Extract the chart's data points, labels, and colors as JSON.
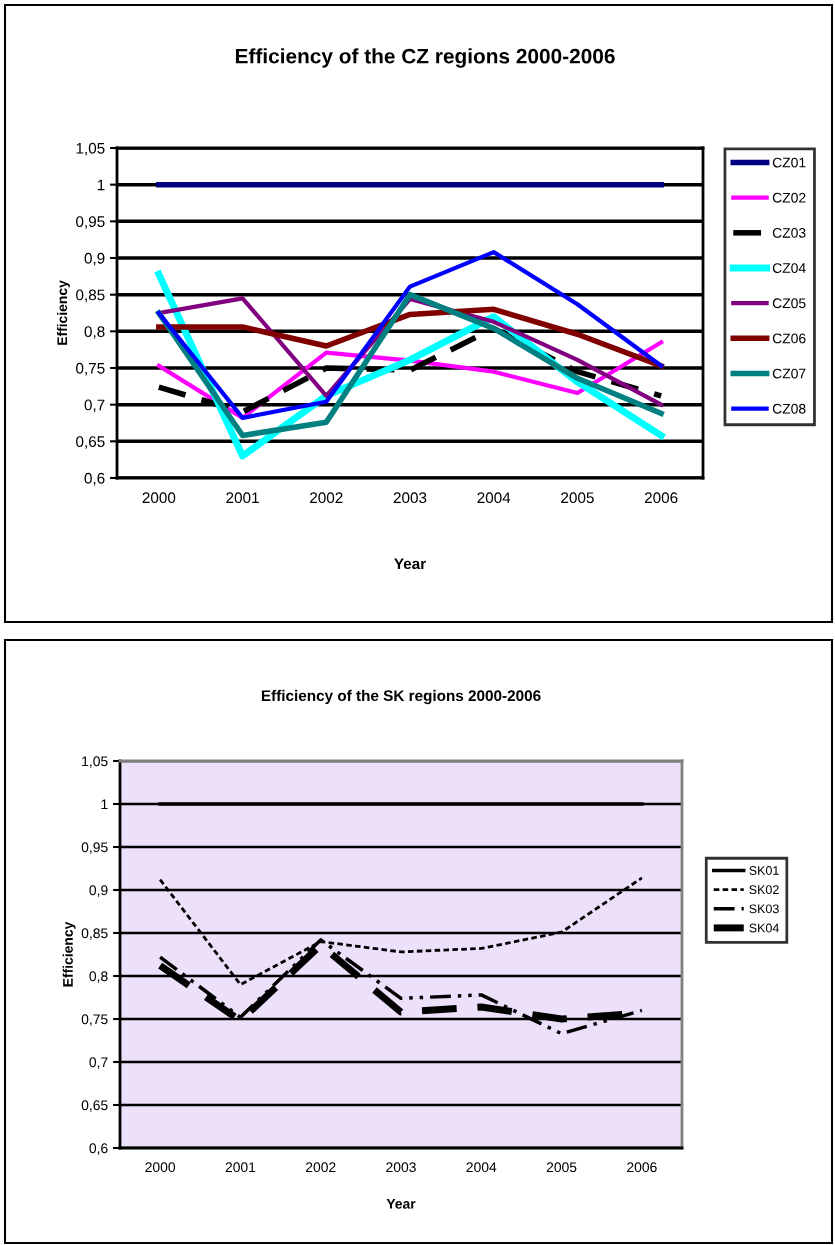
{
  "chart_data": [
    {
      "type": "line",
      "title": "Efficiency of the CZ regions 2000-2006",
      "xlabel": "Year",
      "ylabel": "Efficiency",
      "categories": [
        "2000",
        "2001",
        "2002",
        "2003",
        "2004",
        "2005",
        "2006"
      ],
      "ylim": [
        0.6,
        1.05
      ],
      "yticks": [
        {
          "value": 0.6,
          "label": "0,6"
        },
        {
          "value": 0.65,
          "label": "0,65"
        },
        {
          "value": 0.7,
          "label": "0,7"
        },
        {
          "value": 0.75,
          "label": "0,75"
        },
        {
          "value": 0.8,
          "label": "0,8"
        },
        {
          "value": 0.85,
          "label": "0,85"
        },
        {
          "value": 0.9,
          "label": "0,9"
        },
        {
          "value": 0.95,
          "label": "0,95"
        },
        {
          "value": 1,
          "label": "1"
        },
        {
          "value": 1.05,
          "label": "1,05"
        }
      ],
      "grid": "y",
      "legend": "right",
      "marker": "none",
      "line_style": "solid",
      "series": [
        {
          "name": "CZ01",
          "color": "#000080",
          "values": [
            1,
            1,
            1,
            1,
            1,
            1,
            1
          ]
        },
        {
          "name": "CZ02",
          "color": "#ff00ff",
          "values": [
            0.753,
            0.682,
            0.771,
            0.76,
            0.745,
            0.716,
            0.785
          ]
        },
        {
          "name": "CZ03",
          "color": "#000000",
          "line_style": "dashed",
          "values": [
            0.724,
            0.69,
            0.75,
            0.747,
            0.804,
            0.745,
            0.712
          ]
        },
        {
          "name": "CZ04",
          "color": "#00ffff",
          "values": [
            0.878,
            0.63,
            0.712,
            0.761,
            0.82,
            0.731,
            0.658
          ]
        },
        {
          "name": "CZ05",
          "color": "#800080",
          "values": [
            0.825,
            0.845,
            0.712,
            0.844,
            0.813,
            0.761,
            0.7
          ]
        },
        {
          "name": "CZ06",
          "color": "#800000",
          "values": [
            0.806,
            0.806,
            0.78,
            0.823,
            0.83,
            0.796,
            0.753
          ]
        },
        {
          "name": "CZ07",
          "color": "#008080",
          "values": [
            0.825,
            0.658,
            0.676,
            0.85,
            0.804,
            0.736,
            0.688
          ]
        },
        {
          "name": "CZ08",
          "color": "#0000ff",
          "values": [
            0.825,
            0.682,
            0.704,
            0.861,
            0.908,
            0.837,
            0.753
          ]
        }
      ]
    },
    {
      "type": "line",
      "title": "Efficiency of the SK regions 2000-2006",
      "xlabel": "Year",
      "ylabel": "Efficiency",
      "categories": [
        "2000",
        "2001",
        "2002",
        "2003",
        "2004",
        "2005",
        "2006"
      ],
      "ylim": [
        0.6,
        1.05
      ],
      "yticks": [
        {
          "value": 0.6,
          "label": "0,6"
        },
        {
          "value": 0.65,
          "label": "0,65"
        },
        {
          "value": 0.7,
          "label": "0,7"
        },
        {
          "value": 0.75,
          "label": "0,75"
        },
        {
          "value": 0.8,
          "label": "0,8"
        },
        {
          "value": 0.85,
          "label": "0,85"
        },
        {
          "value": 0.9,
          "label": "0,9"
        },
        {
          "value": 0.95,
          "label": "0,95"
        },
        {
          "value": 1,
          "label": "1"
        },
        {
          "value": 1.05,
          "label": "1,05"
        }
      ],
      "grid": "y",
      "legend": "right",
      "marker": "none",
      "line_style": "solid",
      "series": [
        {
          "name": "SK01",
          "color": "#000000",
          "values": [
            1,
            1,
            1,
            1,
            1,
            1,
            1
          ]
        },
        {
          "name": "SK02",
          "color": "#000000",
          "line_style": "dotted",
          "values": [
            0.912,
            0.79,
            0.84,
            0.828,
            0.832,
            0.851,
            0.914
          ]
        },
        {
          "name": "SK03",
          "color": "#000000",
          "line_style": "dashdot",
          "values": [
            0.822,
            0.752,
            0.842,
            0.774,
            0.778,
            0.733,
            0.76
          ]
        },
        {
          "name": "SK04",
          "color": "#000000",
          "line_style": "dashed",
          "values": [
            0.812,
            0.748,
            0.836,
            0.758,
            0.764,
            0.75,
            0.757
          ]
        }
      ]
    }
  ]
}
